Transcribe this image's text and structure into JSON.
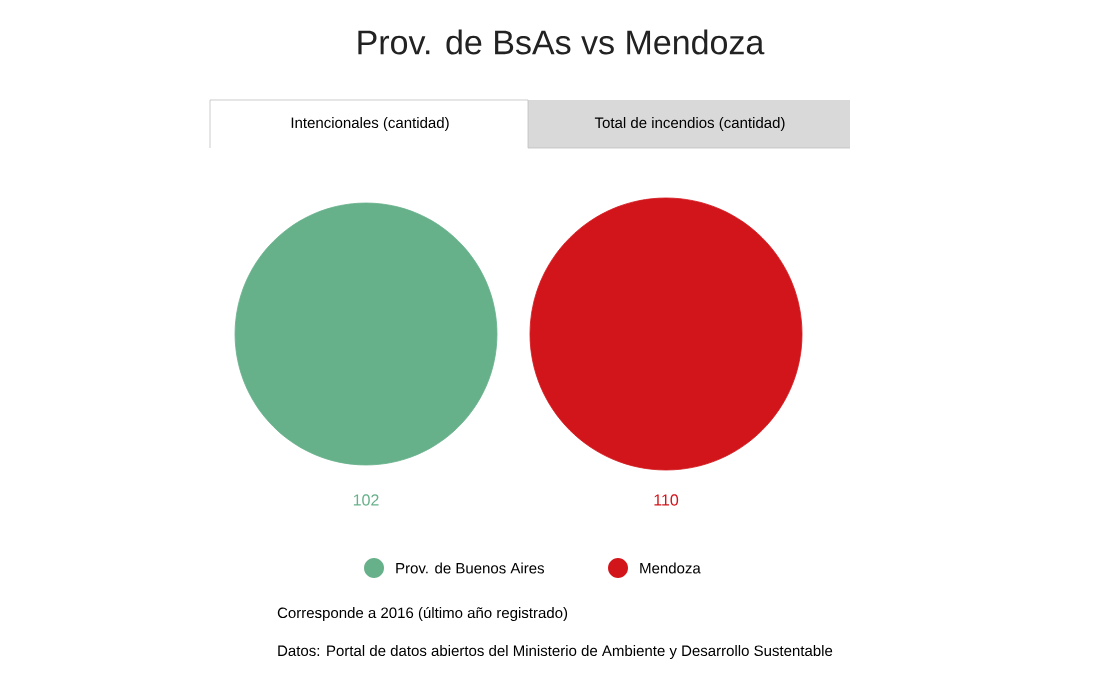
{
  "chart_data": {
    "type": "other",
    "title": "Prov. de BsAs vs Mendoza",
    "categories": [
      "Prov. de Buenos Aires",
      "Mendoza"
    ],
    "values": [
      102,
      110
    ],
    "colors": [
      "#66b08a",
      "#d2151a"
    ],
    "data_labels": true,
    "annotations": [
      "Intencionales (cantidad)",
      "Total de incendios (cantidad)",
      "Corresponde a 2016 (último año registrado)",
      "Datos: Portal de datos abiertos del Ministerio de Ambiente y Desarrollo Sustentable"
    ]
  }
}
